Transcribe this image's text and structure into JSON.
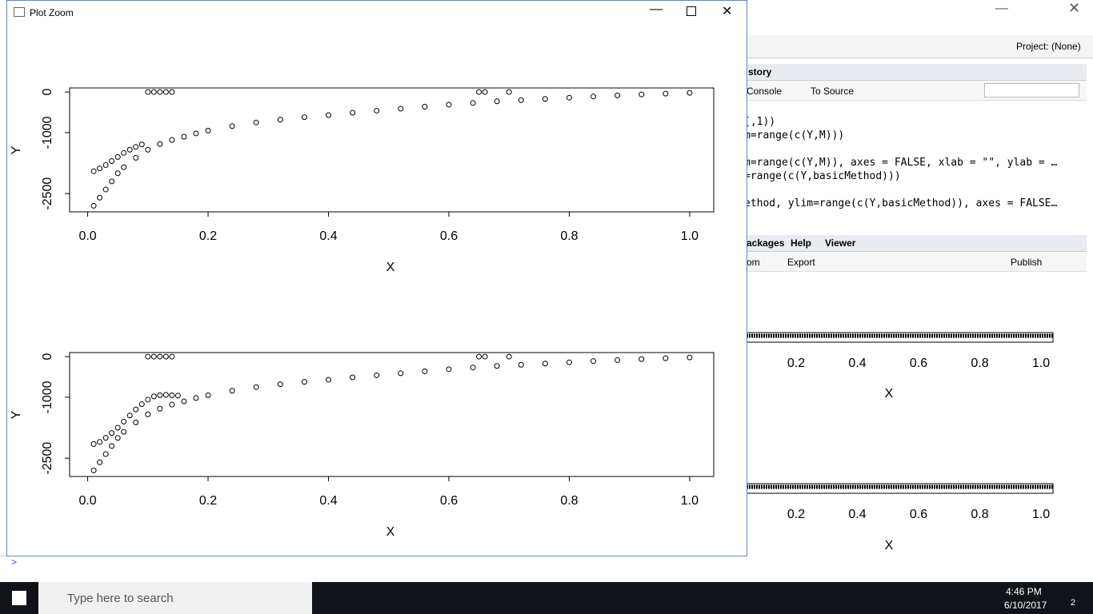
{
  "window": {
    "title": "Plot Zoom"
  },
  "chart_data": [
    {
      "type": "scatter",
      "x_label": "X",
      "y_label": "Y",
      "x": [
        0.01,
        0.02,
        0.03,
        0.04,
        0.05,
        0.06,
        0.08,
        0.1,
        0.12,
        0.14,
        0.16,
        0.18,
        0.2,
        0.24,
        0.28,
        0.32,
        0.36,
        0.4,
        0.44,
        0.48,
        0.52,
        0.56,
        0.6,
        0.64,
        0.68,
        0.72,
        0.76,
        0.8,
        0.84,
        0.88,
        0.92,
        0.96,
        1.0,
        0.01,
        0.02,
        0.03,
        0.04,
        0.05,
        0.06,
        0.07,
        0.08,
        0.09,
        0.1,
        0.11,
        0.12,
        0.13,
        0.14,
        0.65,
        0.66,
        0.7
      ],
      "values": [
        -2800,
        -2600,
        -2400,
        -2200,
        -2000,
        -1850,
        -1620,
        -1420,
        -1280,
        -1180,
        -1100,
        -1020,
        -950,
        -840,
        -750,
        -680,
        -620,
        -570,
        -510,
        -460,
        -410,
        -360,
        -310,
        -270,
        -230,
        -200,
        -170,
        -140,
        -110,
        -85,
        -60,
        -40,
        -20,
        -1950,
        -1880,
        -1800,
        -1700,
        -1600,
        -1500,
        -1420,
        -1350,
        -1290,
        0,
        0,
        0,
        0,
        0,
        0,
        0,
        0
      ],
      "xlim": [
        -0.03,
        1.04
      ],
      "ylim": [
        -2950,
        100
      ],
      "xticks": [
        {
          "value": 0,
          "label": "0.0"
        },
        0.2,
        0.4,
        0.6,
        0.8,
        {
          "value": 1,
          "label": "1.0"
        }
      ],
      "yticks": [
        0,
        -1000,
        -2500
      ]
    },
    {
      "type": "scatter",
      "x_label": "X",
      "y_label": "Y",
      "x": [
        0.01,
        0.02,
        0.03,
        0.04,
        0.05,
        0.06,
        0.08,
        0.1,
        0.12,
        0.14,
        0.16,
        0.18,
        0.2,
        0.24,
        0.28,
        0.32,
        0.36,
        0.4,
        0.44,
        0.48,
        0.52,
        0.56,
        0.6,
        0.64,
        0.68,
        0.72,
        0.76,
        0.8,
        0.84,
        0.88,
        0.92,
        0.96,
        1.0,
        0.01,
        0.02,
        0.03,
        0.04,
        0.05,
        0.06,
        0.07,
        0.08,
        0.09,
        0.1,
        0.11,
        0.12,
        0.13,
        0.14,
        0.15,
        0.1,
        0.11,
        0.12,
        0.13,
        0.14,
        0.65,
        0.66,
        0.7
      ],
      "values": [
        -2800,
        -2600,
        -2400,
        -2200,
        -2000,
        -1850,
        -1620,
        -1420,
        -1280,
        -1180,
        -1100,
        -1020,
        -950,
        -840,
        -750,
        -680,
        -620,
        -570,
        -510,
        -460,
        -410,
        -360,
        -310,
        -270,
        -230,
        -200,
        -170,
        -140,
        -110,
        -85,
        -60,
        -40,
        -20,
        -2150,
        -2100,
        -2000,
        -1880,
        -1750,
        -1600,
        -1450,
        -1300,
        -1170,
        -1060,
        -980,
        -950,
        -940,
        -950,
        -960,
        0,
        0,
        0,
        0,
        0,
        0,
        0,
        0
      ],
      "xlim": [
        -0.03,
        1.04
      ],
      "ylim": [
        -2950,
        100
      ],
      "xticks": [
        {
          "value": 0,
          "label": "0.0"
        },
        0.2,
        0.4,
        0.6,
        0.8,
        {
          "value": 1,
          "label": "1.0"
        }
      ],
      "yticks": [
        0,
        -1000,
        -2500
      ]
    }
  ],
  "rstudio": {
    "project": "Project: (None)",
    "history_tab": "story",
    "history_toolbar": [
      "Console",
      "To Source"
    ],
    "history_lines": [
      "[,1))",
      "m=range(c(Y,M)))",
      "m=range(c(Y,M)), axes = FALSE, xlab = \"\", ylab = …",
      "=range(c(Y,basicMethod)))",
      "ethod, ylim=range(c(Y,basicMethod)), axes = FALSE…"
    ],
    "pane_tabs": [
      "ackages",
      "Help",
      "Viewer"
    ],
    "pane_toolbar": [
      "om",
      "Export",
      "Publish"
    ],
    "plot_tick_labels": [
      "0.2",
      "0.4",
      "0.6",
      "0.8",
      "1.0"
    ],
    "plot_x_label": "X",
    "console_prompt": ">"
  },
  "taskbar": {
    "search": "Type here to search",
    "time": "4:46 PM",
    "date": "6/10/2017",
    "notifications": "2"
  }
}
